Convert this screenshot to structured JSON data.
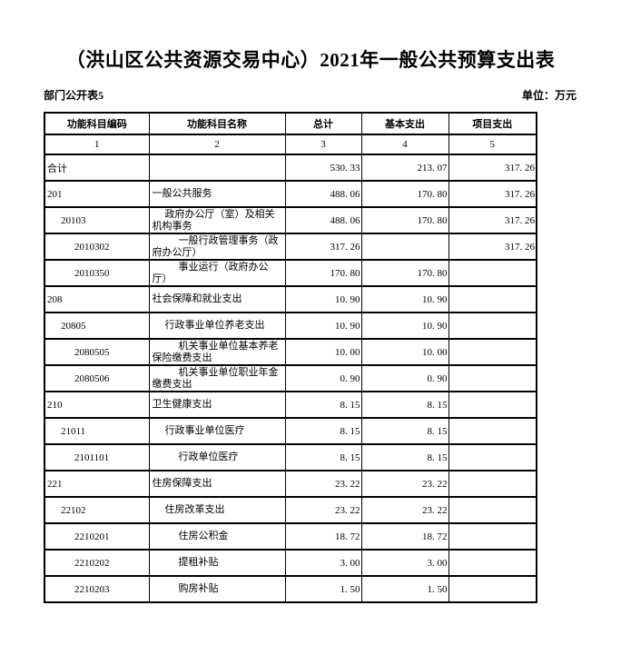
{
  "title": "（洪山区公共资源交易中心）2021年一般公共预算支出表",
  "meta": {
    "sheet_label": "部门公开表5",
    "unit_label": "单位：万元"
  },
  "table": {
    "headers": [
      "功能科目编码",
      "功能科目名称",
      "总计",
      "基本支出",
      "项目支出"
    ],
    "column_numbers": [
      "1",
      "2",
      "3",
      "4",
      "5"
    ],
    "rows": [
      {
        "code": "合计",
        "name": "",
        "total": "530.33",
        "basic": "213.07",
        "project": "317.26",
        "level": 0
      },
      {
        "code": "201",
        "name": "一般公共服务",
        "total": "488.06",
        "basic": "170.80",
        "project": "317.26",
        "level": 0
      },
      {
        "code": "20103",
        "name": "政府办公厅（室）及相关机构事务",
        "total": "488.06",
        "basic": "170.80",
        "project": "317.26",
        "level": 1
      },
      {
        "code": "2010302",
        "name": "一般行政管理事务（政府办公厅）",
        "total": "317.26",
        "basic": "",
        "project": "317.26",
        "level": 2
      },
      {
        "code": "2010350",
        "name": "事业运行（政府办公厅）",
        "total": "170.80",
        "basic": "170.80",
        "project": "",
        "level": 2
      },
      {
        "code": "208",
        "name": "社会保障和就业支出",
        "total": "10.90",
        "basic": "10.90",
        "project": "",
        "level": 0
      },
      {
        "code": "20805",
        "name": "行政事业单位养老支出",
        "total": "10.90",
        "basic": "10.90",
        "project": "",
        "level": 1
      },
      {
        "code": "2080505",
        "name": "机关事业单位基本养老保险缴费支出",
        "total": "10.00",
        "basic": "10.00",
        "project": "",
        "level": 2
      },
      {
        "code": "2080506",
        "name": "机关事业单位职业年金缴费支出",
        "total": "0.90",
        "basic": "0.90",
        "project": "",
        "level": 2
      },
      {
        "code": "210",
        "name": "卫生健康支出",
        "total": "8.15",
        "basic": "8.15",
        "project": "",
        "level": 0
      },
      {
        "code": "21011",
        "name": "行政事业单位医疗",
        "total": "8.15",
        "basic": "8.15",
        "project": "",
        "level": 1
      },
      {
        "code": "2101101",
        "name": "行政单位医疗",
        "total": "8.15",
        "basic": "8.15",
        "project": "",
        "level": 2
      },
      {
        "code": "221",
        "name": "住房保障支出",
        "total": "23.22",
        "basic": "23.22",
        "project": "",
        "level": 0
      },
      {
        "code": "22102",
        "name": "住房改革支出",
        "total": "23.22",
        "basic": "23.22",
        "project": "",
        "level": 1
      },
      {
        "code": "2210201",
        "name": "住房公积金",
        "total": "18.72",
        "basic": "18.72",
        "project": "",
        "level": 2
      },
      {
        "code": "2210202",
        "name": "提租补贴",
        "total": "3.00",
        "basic": "3.00",
        "project": "",
        "level": 2
      },
      {
        "code": "2210203",
        "name": "购房补贴",
        "total": "1.50",
        "basic": "1.50",
        "project": "",
        "level": 2
      }
    ]
  }
}
